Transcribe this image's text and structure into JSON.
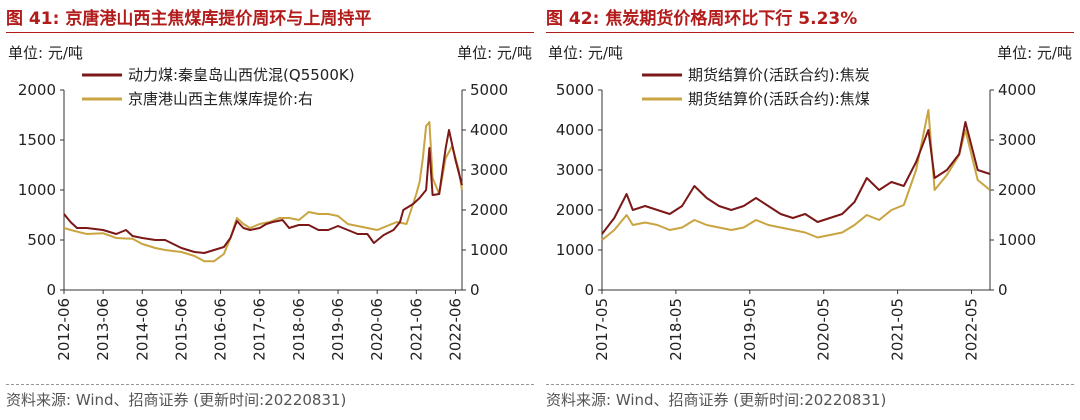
{
  "colors": {
    "title": "#b31b1b",
    "series_dark": "#7b1818",
    "series_gold": "#c9a440",
    "axis": "#333333"
  },
  "left": {
    "fig_no": "图 41:",
    "title": "京唐港山西主焦煤库提价周环与上周持平",
    "unit_left": "单位: 元/吨",
    "unit_right": "单位: 元/吨",
    "source": "资料来源: Wind、招商证券 (更新时间:20220831)"
  },
  "right": {
    "fig_no": "图 42:",
    "title": "焦炭期货价格周环比下行 5.23%",
    "unit_left": "单位: 元/吨",
    "unit_right": "单位: 元/吨",
    "source": "资料来源: Wind、招商证券 (更新时间:20220831)"
  },
  "chart_data": [
    {
      "type": "line",
      "x_ticks": [
        "2012-06",
        "2013-06",
        "2014-06",
        "2015-06",
        "2016-06",
        "2017-06",
        "2018-06",
        "2019-06",
        "2020-06",
        "2021-06",
        "2022-06"
      ],
      "x_range": [
        "2012-06",
        "2022-08"
      ],
      "y_left": {
        "ticks": [
          0,
          500,
          1000,
          1500,
          2000
        ],
        "range": [
          0,
          2000
        ]
      },
      "y_right": {
        "ticks": [
          0,
          1000,
          2000,
          3000,
          4000,
          5000
        ],
        "range": [
          0,
          5000
        ]
      },
      "legend_placement": "top-left",
      "series": [
        {
          "name": "动力煤:秦皇岛山西优混(Q5500K)",
          "axis": "left",
          "x": [
            "2012-06",
            "2012-08",
            "2012-10",
            "2013-01",
            "2013-06",
            "2013-10",
            "2014-01",
            "2014-03",
            "2014-06",
            "2014-10",
            "2015-01",
            "2015-06",
            "2015-10",
            "2016-01",
            "2016-04",
            "2016-07",
            "2016-09",
            "2016-11",
            "2017-01",
            "2017-03",
            "2017-06",
            "2017-08",
            "2017-10",
            "2018-01",
            "2018-03",
            "2018-06",
            "2018-09",
            "2018-12",
            "2019-03",
            "2019-06",
            "2019-09",
            "2019-12",
            "2020-03",
            "2020-05",
            "2020-08",
            "2020-11",
            "2021-01",
            "2021-02",
            "2021-05",
            "2021-07",
            "2021-09",
            "2021-10",
            "2021-11",
            "2022-01",
            "2022-03",
            "2022-04",
            "2022-06",
            "2022-08"
          ],
          "values": [
            760,
            680,
            620,
            620,
            600,
            560,
            600,
            540,
            520,
            500,
            500,
            420,
            380,
            370,
            400,
            430,
            520,
            690,
            620,
            600,
            620,
            660,
            680,
            700,
            620,
            650,
            650,
            600,
            600,
            640,
            600,
            560,
            560,
            470,
            550,
            600,
            680,
            800,
            860,
            920,
            1000,
            1420,
            950,
            960,
            1420,
            1600,
            1300,
            1050
          ]
        },
        {
          "name": "京唐港山西主焦煤库提价:右",
          "axis": "right",
          "x": [
            "2012-06",
            "2012-09",
            "2013-01",
            "2013-06",
            "2013-10",
            "2014-03",
            "2014-06",
            "2014-10",
            "2015-01",
            "2015-06",
            "2015-10",
            "2016-01",
            "2016-04",
            "2016-07",
            "2016-09",
            "2016-11",
            "2017-01",
            "2017-03",
            "2017-06",
            "2017-09",
            "2017-12",
            "2018-03",
            "2018-06",
            "2018-09",
            "2018-12",
            "2019-03",
            "2019-06",
            "2019-09",
            "2019-12",
            "2020-03",
            "2020-06",
            "2020-09",
            "2020-12",
            "2021-03",
            "2021-06",
            "2021-07",
            "2021-08",
            "2021-09",
            "2021-10",
            "2021-11",
            "2022-01",
            "2022-03",
            "2022-05",
            "2022-07",
            "2022-08"
          ],
          "values": [
            1550,
            1480,
            1400,
            1420,
            1300,
            1280,
            1150,
            1050,
            1000,
            950,
            850,
            720,
            720,
            900,
            1300,
            1800,
            1650,
            1550,
            1650,
            1700,
            1800,
            1800,
            1750,
            1950,
            1900,
            1900,
            1850,
            1650,
            1600,
            1550,
            1500,
            1600,
            1700,
            1650,
            2400,
            2700,
            3300,
            4100,
            4200,
            2800,
            2400,
            3300,
            3600,
            3000,
            2500
          ]
        }
      ]
    },
    {
      "type": "line",
      "x_ticks": [
        "2017-05",
        "2018-05",
        "2019-05",
        "2020-05",
        "2021-05",
        "2022-05"
      ],
      "x_range": [
        "2017-05",
        "2022-08"
      ],
      "y_left": {
        "ticks": [
          0,
          1000,
          2000,
          3000,
          4000,
          5000
        ],
        "range": [
          0,
          5000
        ]
      },
      "y_right": {
        "ticks": [
          0,
          1000,
          2000,
          3000,
          4000
        ],
        "range": [
          0,
          4000
        ]
      },
      "legend_placement": "top-left",
      "series": [
        {
          "name": "期货结算价(活跃合约):焦炭",
          "axis": "left",
          "x": [
            "2017-05",
            "2017-07",
            "2017-09",
            "2017-10",
            "2017-12",
            "2018-02",
            "2018-04",
            "2018-06",
            "2018-08",
            "2018-10",
            "2018-12",
            "2019-02",
            "2019-04",
            "2019-06",
            "2019-08",
            "2019-10",
            "2019-12",
            "2020-02",
            "2020-04",
            "2020-06",
            "2020-08",
            "2020-10",
            "2020-12",
            "2021-02",
            "2021-04",
            "2021-06",
            "2021-08",
            "2021-10",
            "2021-11",
            "2022-01",
            "2022-03",
            "2022-04",
            "2022-06",
            "2022-08"
          ],
          "values": [
            1400,
            1800,
            2400,
            2000,
            2100,
            2000,
            1900,
            2100,
            2600,
            2300,
            2100,
            2000,
            2100,
            2300,
            2100,
            1900,
            1800,
            1900,
            1700,
            1800,
            1900,
            2200,
            2800,
            2500,
            2700,
            2600,
            3200,
            4000,
            2800,
            3000,
            3400,
            4200,
            3000,
            2900
          ]
        },
        {
          "name": "期货结算价(活跃合约):焦煤",
          "axis": "right",
          "x": [
            "2017-05",
            "2017-07",
            "2017-09",
            "2017-10",
            "2017-12",
            "2018-02",
            "2018-04",
            "2018-06",
            "2018-08",
            "2018-10",
            "2018-12",
            "2019-02",
            "2019-04",
            "2019-06",
            "2019-08",
            "2019-10",
            "2019-12",
            "2020-02",
            "2020-04",
            "2020-06",
            "2020-08",
            "2020-10",
            "2020-12",
            "2021-02",
            "2021-04",
            "2021-06",
            "2021-08",
            "2021-10",
            "2021-11",
            "2022-01",
            "2022-03",
            "2022-04",
            "2022-06",
            "2022-08"
          ],
          "values": [
            1000,
            1200,
            1500,
            1300,
            1350,
            1300,
            1200,
            1250,
            1400,
            1300,
            1250,
            1200,
            1250,
            1400,
            1300,
            1250,
            1200,
            1150,
            1050,
            1100,
            1150,
            1300,
            1500,
            1400,
            1600,
            1700,
            2400,
            3600,
            2000,
            2300,
            2700,
            3200,
            2200,
            2000
          ]
        }
      ]
    }
  ]
}
